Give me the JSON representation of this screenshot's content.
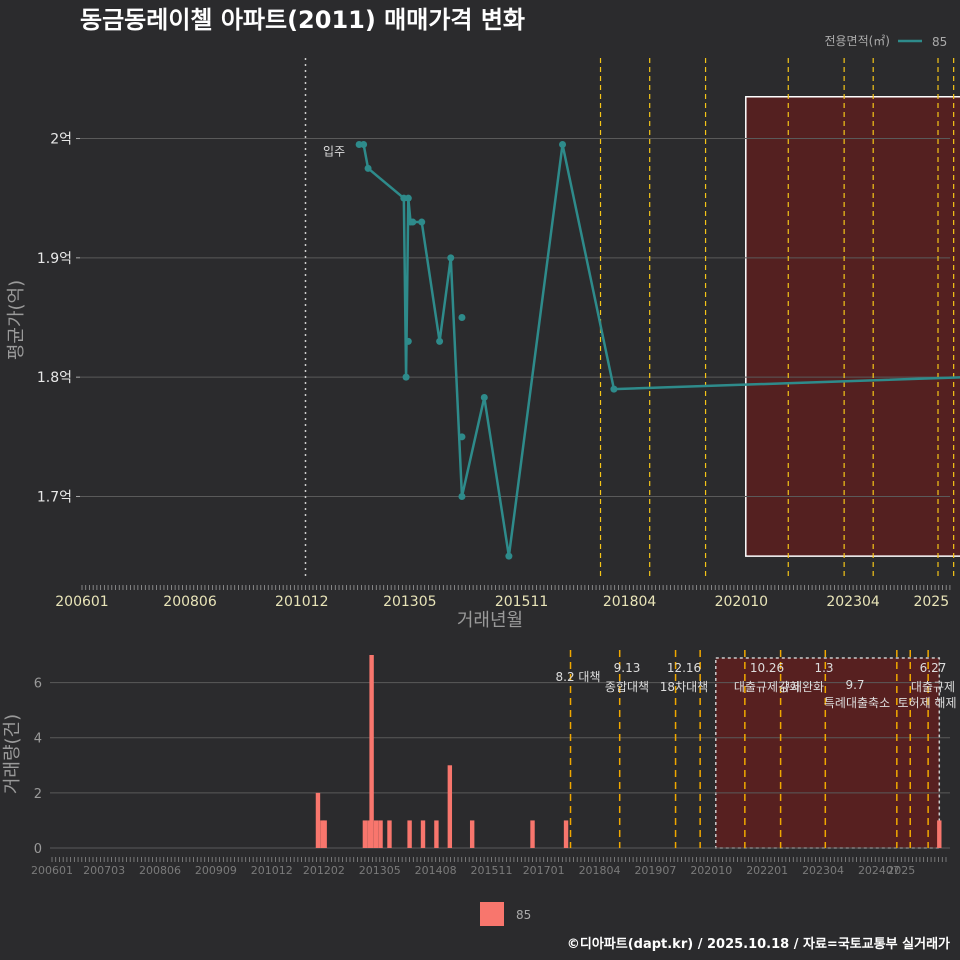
{
  "title": "동금동레이첼 아파트(2011) 매매가격 변화",
  "caption": "©디아파트(dapt.kr) / 2025.10.18 / 자료=국토교통부 실거래가",
  "colors": {
    "background": "#2b2b2d",
    "line": "#2e8b8b",
    "bar": "#f8766d",
    "policy_line": "#f5c518",
    "highlight_fill": "#5c1f1f"
  },
  "chart_data": [
    {
      "type": "line",
      "title": "",
      "xlabel": "거래년월",
      "ylabel": "평균가(억)",
      "x_tick_labels": [
        "200601",
        "200806",
        "201012",
        "201305",
        "201511",
        "201804",
        "202010",
        "202304",
        "2025"
      ],
      "y_ticks": [
        1.7,
        1.8,
        1.9,
        2.0
      ],
      "y_tick_labels": [
        "1.7억",
        "1.8억",
        "1.9억",
        "2억"
      ],
      "ylim": [
        1.63,
        2.07
      ],
      "legend": {
        "title": "전용면적(㎡)",
        "entries": [
          "85"
        ],
        "placement": "top-right"
      },
      "move_in": {
        "label": "입주",
        "x": 2011.0
      },
      "series": [
        {
          "name": "85",
          "x": [
            2012.2,
            2012.3,
            2012.4,
            2013.2,
            2013.25,
            2013.3,
            2013.35,
            2013.4,
            2013.6,
            2014.0,
            2014.25,
            2014.5,
            2015.0,
            2015.55,
            2016.75,
            2017.9,
            2025.8
          ],
          "y": [
            1.995,
            1.995,
            1.975,
            1.95,
            1.8,
            1.95,
            1.93,
            1.93,
            1.93,
            1.83,
            1.9,
            1.7,
            1.783,
            1.65,
            1.995,
            1.79,
            1.8
          ]
        }
      ],
      "extra_points": [
        {
          "x": 2013.3,
          "y": 1.83
        },
        {
          "x": 2014.5,
          "y": 1.85
        },
        {
          "x": 2014.5,
          "y": 1.75
        }
      ],
      "policy_lines_x": [
        2017.6,
        2018.7,
        2019.95,
        2021.8,
        2023.05,
        2023.7,
        2025.15,
        2025.5
      ],
      "highlight_box": {
        "x_start": 2020.85,
        "x_end": 2025.85,
        "y_start": 1.65,
        "y_end": 2.035
      }
    },
    {
      "type": "bar",
      "xlabel": "",
      "ylabel": "거래량(건)",
      "x_tick_labels": [
        "200601",
        "200703",
        "200806",
        "200909",
        "201012",
        "201202",
        "201305",
        "201408",
        "201511",
        "201701",
        "201804",
        "201907",
        "202010",
        "202201",
        "202304",
        "202407",
        "2025"
      ],
      "y_ticks": [
        0,
        2,
        4,
        6
      ],
      "ylim": [
        0,
        7
      ],
      "series": [
        {
          "name": "85",
          "x": [
            2011.95,
            2012.05,
            2012.1,
            2013.0,
            2013.1,
            2013.15,
            2013.25,
            2013.35,
            2013.55,
            2014.0,
            2014.3,
            2014.6,
            2014.9,
            2015.4,
            2016.75,
            2017.5,
            2025.85
          ],
          "values": [
            2,
            1,
            1,
            1,
            1,
            7,
            1,
            1,
            1,
            1,
            1,
            1,
            3,
            1,
            1,
            1,
            1
          ]
        }
      ],
      "policy_lines_x": [
        2017.6,
        2018.7,
        2019.95,
        2020.5,
        2021.5,
        2022.3,
        2023.3,
        2024.9,
        2025.2,
        2025.6
      ],
      "highlight_box": {
        "x_start": 2020.85,
        "x_end": 2025.85,
        "y_start": 0,
        "y_end": 7
      },
      "annotations": [
        {
          "date": "8.2",
          "label": "대책"
        },
        {
          "date": "9.13",
          "label": "종합대책"
        },
        {
          "date": "12.16",
          "label": "18차대책"
        },
        {
          "date": "10.26",
          "label": "대출규제강화"
        },
        {
          "date": "1.3",
          "label": "규제완화"
        },
        {
          "date": "9.7",
          "label": "특례대출축소"
        },
        {
          "date": "",
          "label": "토허제 해제"
        },
        {
          "date": "6.27",
          "label": "대출규제"
        }
      ],
      "legend": {
        "entries": [
          "85"
        ],
        "placement": "bottom"
      }
    }
  ]
}
